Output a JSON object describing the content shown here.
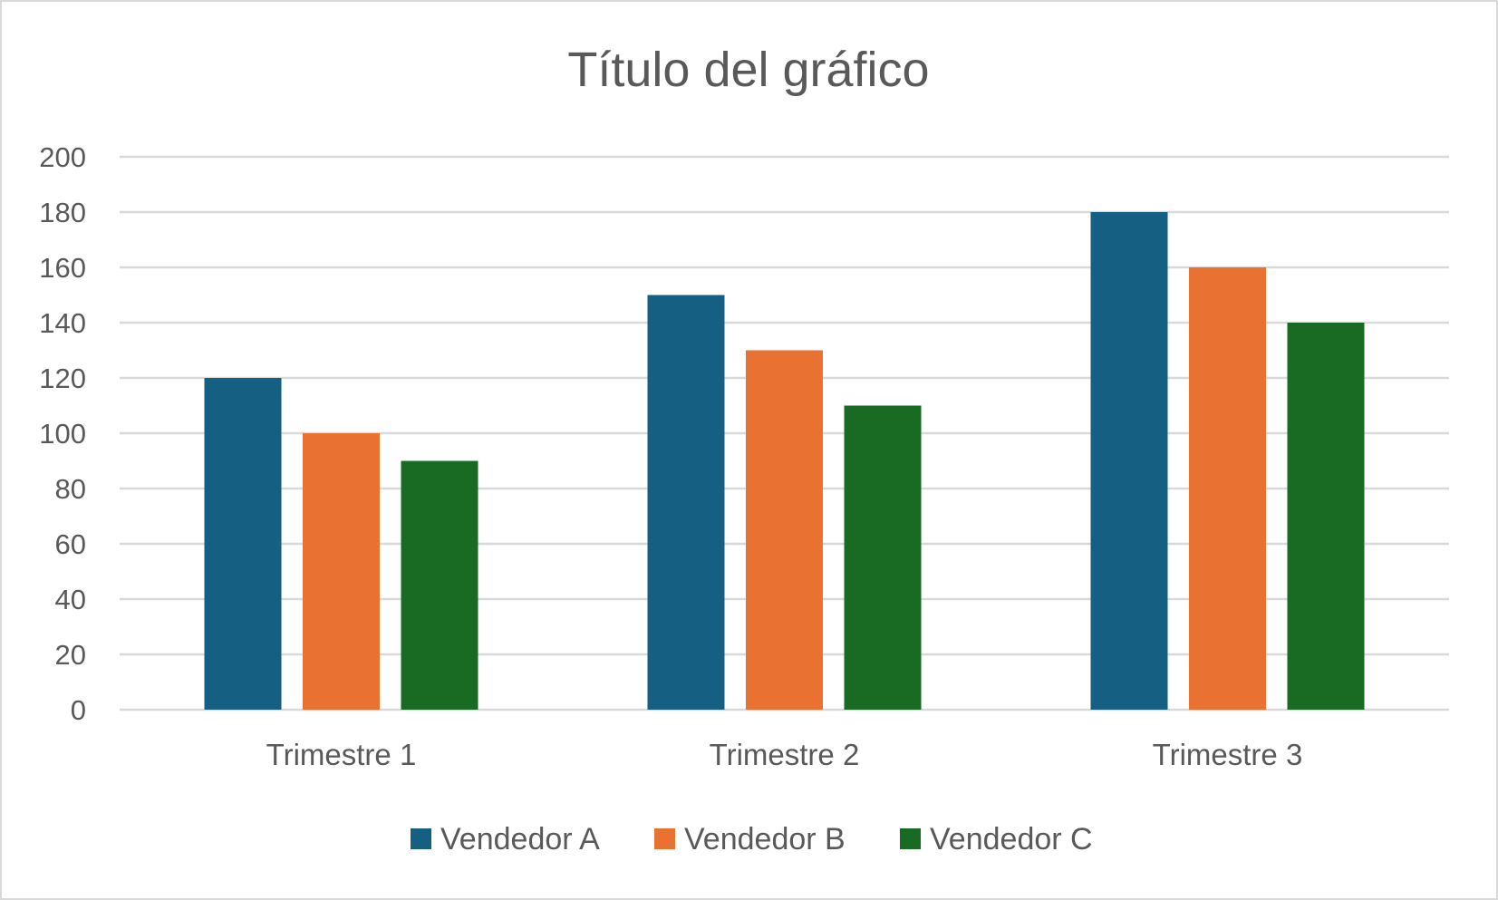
{
  "chart_data": {
    "type": "bar",
    "title": "Título del gráfico",
    "categories": [
      "Trimestre 1",
      "Trimestre 2",
      "Trimestre 3"
    ],
    "series": [
      {
        "name": "Vendedor A",
        "values": [
          120,
          150,
          180
        ],
        "color": "#156082"
      },
      {
        "name": "Vendedor B",
        "values": [
          100,
          130,
          160
        ],
        "color": "#E97132"
      },
      {
        "name": "Vendedor C",
        "values": [
          90,
          110,
          140
        ],
        "color": "#196B24"
      }
    ],
    "ylim": [
      0,
      200
    ],
    "yticks": [
      0,
      20,
      40,
      60,
      80,
      100,
      120,
      140,
      160,
      180,
      200
    ],
    "grid": true,
    "legend_position": "bottom",
    "colors": {
      "gridline": "#D9D9D9",
      "text": "#595959",
      "border": "#D9D9D9"
    }
  }
}
